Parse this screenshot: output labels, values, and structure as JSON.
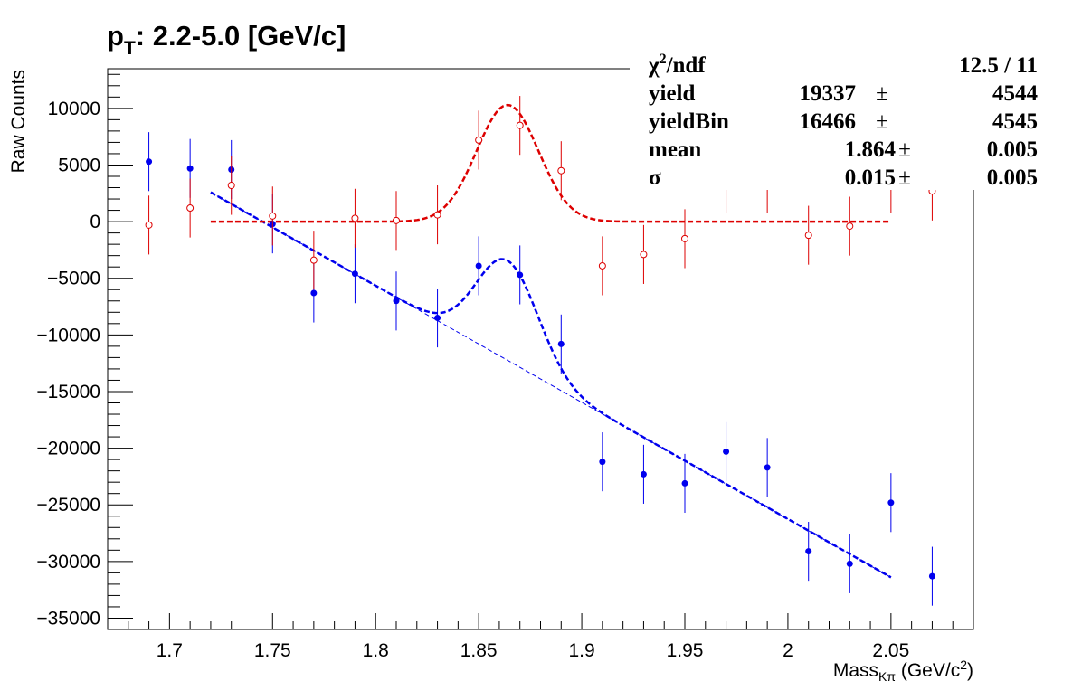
{
  "chart_data": {
    "type": "scatter",
    "title_main": "p",
    "title_sub": "T",
    "title_rest": ": 2.2-5.0 [GeV/c]",
    "xlabel_main": "Mass",
    "xlabel_sub": "Kπ",
    "xlabel_unit": " (GeV/c",
    "xlabel_sup": "2",
    "xlabel_close": ")",
    "ylabel": "Raw Counts",
    "xlim": [
      1.67,
      2.09
    ],
    "ylim": [
      -36000,
      13500
    ],
    "x_ticks": [
      1.7,
      1.75,
      1.8,
      1.85,
      1.9,
      1.95,
      2.0,
      2.05
    ],
    "x_tick_labels": [
      "1.7",
      "1.75",
      "1.8",
      "1.85",
      "1.9",
      "1.95",
      "2",
      "2.05"
    ],
    "y_ticks": [
      10000,
      5000,
      0,
      -5000,
      -10000,
      -15000,
      -20000,
      -25000,
      -30000,
      -35000
    ],
    "y_tick_labels": [
      "10000",
      "5000",
      "0",
      "−5000",
      "−10000",
      "−15000",
      "−20000",
      "−25000",
      "−30000",
      "−35000"
    ],
    "colors": {
      "blue": "#0000ee",
      "red": "#dd0000"
    },
    "series": [
      {
        "marker": "filled-circle",
        "color": "#0000ee",
        "points": [
          {
            "x": 1.69,
            "y": 5300,
            "err": 2600
          },
          {
            "x": 1.71,
            "y": 4700,
            "err": 2600
          },
          {
            "x": 1.73,
            "y": 4600,
            "err": 2600
          },
          {
            "x": 1.75,
            "y": -200,
            "err": 2600
          },
          {
            "x": 1.77,
            "y": -6300,
            "err": 2600
          },
          {
            "x": 1.79,
            "y": -4600,
            "err": 2600
          },
          {
            "x": 1.81,
            "y": -7000,
            "err": 2600
          },
          {
            "x": 1.83,
            "y": -8500,
            "err": 2600
          },
          {
            "x": 1.85,
            "y": -3900,
            "err": 2600
          },
          {
            "x": 1.87,
            "y": -4700,
            "err": 2600
          },
          {
            "x": 1.89,
            "y": -10800,
            "err": 2600
          },
          {
            "x": 1.91,
            "y": -21200,
            "err": 2600
          },
          {
            "x": 1.93,
            "y": -22300,
            "err": 2600
          },
          {
            "x": 1.95,
            "y": -23100,
            "err": 2600
          },
          {
            "x": 1.97,
            "y": -20300,
            "err": 2600
          },
          {
            "x": 1.99,
            "y": -21700,
            "err": 2600
          },
          {
            "x": 2.01,
            "y": -29100,
            "err": 2600
          },
          {
            "x": 2.03,
            "y": -30200,
            "err": 2600
          },
          {
            "x": 2.05,
            "y": -24800,
            "err": 2600
          },
          {
            "x": 2.07,
            "y": -31300,
            "err": 2600
          }
        ]
      },
      {
        "marker": "open-circle",
        "color": "#dd0000",
        "points": [
          {
            "x": 1.69,
            "y": -300,
            "err": 2600
          },
          {
            "x": 1.71,
            "y": 1200,
            "err": 2600
          },
          {
            "x": 1.73,
            "y": 3200,
            "err": 2600
          },
          {
            "x": 1.75,
            "y": 500,
            "err": 2600
          },
          {
            "x": 1.77,
            "y": -3400,
            "err": 2600
          },
          {
            "x": 1.79,
            "y": 300,
            "err": 2600
          },
          {
            "x": 1.81,
            "y": 100,
            "err": 2600
          },
          {
            "x": 1.83,
            "y": 600,
            "err": 2600
          },
          {
            "x": 1.85,
            "y": 7200,
            "err": 2600
          },
          {
            "x": 1.87,
            "y": 8500,
            "err": 2600
          },
          {
            "x": 1.89,
            "y": 4500,
            "err": 2600
          },
          {
            "x": 1.91,
            "y": -3900,
            "err": 2600
          },
          {
            "x": 1.93,
            "y": -2900,
            "err": 2600
          },
          {
            "x": 1.95,
            "y": -1500,
            "err": 2600
          },
          {
            "x": 1.97,
            "y": 3400,
            "err": 2600
          },
          {
            "x": 1.99,
            "y": 3400,
            "err": 2600
          },
          {
            "x": 2.01,
            "y": -1200,
            "err": 2600
          },
          {
            "x": 2.03,
            "y": -400,
            "err": 2600
          },
          {
            "x": 2.05,
            "y": 3400,
            "err": 2600
          },
          {
            "x": 2.07,
            "y": 2700,
            "err": 2600
          }
        ]
      }
    ],
    "fits": {
      "range": [
        1.72,
        2.05
      ],
      "mean": 1.864,
      "sigma": 0.015,
      "red_amplitude": 10300,
      "blue_amplitude": 8800,
      "background": {
        "slope": -103000,
        "intercept_x": 1.75,
        "intercept_y": -500
      }
    },
    "stats": [
      {
        "label_main": "χ",
        "label_sup": "2",
        "label_rest": "/ndf",
        "value": "12.5 / 11",
        "pm": "",
        "error": ""
      },
      {
        "label_main": "yield",
        "label_sup": "",
        "label_rest": "",
        "value": "19337",
        "pm": "±",
        "error": "4544"
      },
      {
        "label_main": "yieldBin",
        "label_sup": "",
        "label_rest": "",
        "value": "16466",
        "pm": "±",
        "error": "4545"
      },
      {
        "label_main": "mean",
        "label_sup": "",
        "label_rest": "",
        "value": "1.864",
        "pm": "±",
        "error": "0.005"
      },
      {
        "label_main": "σ",
        "label_sup": "",
        "label_rest": "",
        "value": "0.015",
        "pm": "±",
        "error": "0.005"
      }
    ]
  }
}
